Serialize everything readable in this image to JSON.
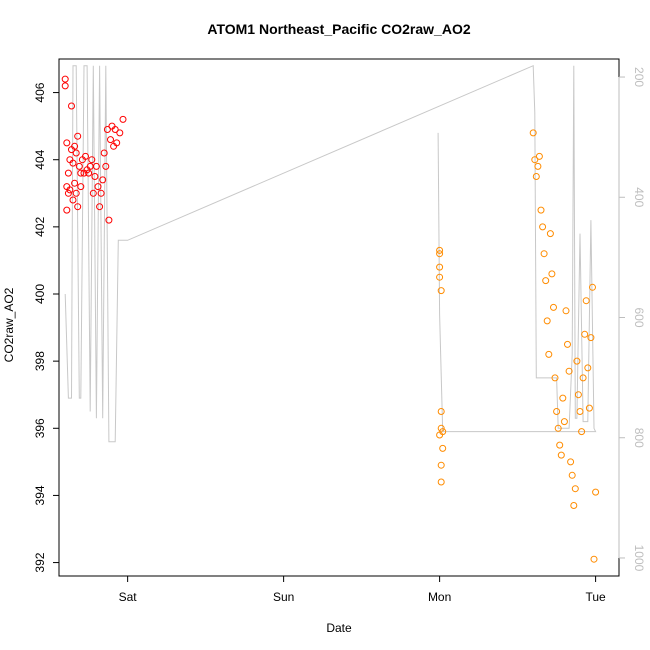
{
  "chart_data": {
    "type": "scatter",
    "title": "ATOM1 Northeast_Pacific CO2raw_AO2",
    "xlabel": "Date",
    "ylabel": "CO2raw_AO2",
    "x_ticks": [
      "Sat",
      "Sun",
      "Mon",
      "Tue"
    ],
    "x_tick_values": [
      1,
      2,
      3,
      4
    ],
    "xlim": [
      0.56,
      4.15
    ],
    "ylim": [
      391.6,
      407
    ],
    "y_ticks": [
      392,
      394,
      396,
      398,
      400,
      402,
      404,
      406
    ],
    "y2_ticks": [
      200,
      400,
      600,
      800,
      1000
    ],
    "y2lim": [
      170,
      1030
    ],
    "grid": false,
    "legend": "none",
    "colors": {
      "series1": "#ff0000",
      "series2": "#ff8c00",
      "line": "#c8c8c8",
      "right_axis": "#bebebe"
    },
    "series": [
      {
        "color": "#ff0000",
        "x": [
          0.6,
          0.6,
          0.61,
          0.61,
          0.61,
          0.62,
          0.62,
          0.63,
          0.63,
          0.64,
          0.64,
          0.65,
          0.65,
          0.66,
          0.66,
          0.67,
          0.67,
          0.68,
          0.68,
          0.69,
          0.7,
          0.7,
          0.71,
          0.72,
          0.73,
          0.74,
          0.75,
          0.76,
          0.77,
          0.78,
          0.79,
          0.8,
          0.81,
          0.82,
          0.83,
          0.84,
          0.85,
          0.86,
          0.87,
          0.88,
          0.89,
          0.9,
          0.91,
          0.92,
          0.93,
          0.95,
          0.97
        ],
        "y": [
          406.4,
          406.2,
          404.5,
          403.2,
          402.5,
          403.6,
          403,
          404,
          403.1,
          405.6,
          404.3,
          402.8,
          403.9,
          404.4,
          403.3,
          404.2,
          403,
          404.7,
          402.6,
          403.8,
          403.6,
          403.2,
          404,
          403.6,
          404.1,
          403.7,
          403.6,
          403.8,
          404,
          403,
          403.5,
          403.8,
          403.2,
          402.6,
          403,
          403.4,
          404.2,
          403.8,
          404.9,
          402.2,
          404.6,
          405,
          404.4,
          404.9,
          404.5,
          404.8,
          405.2
        ]
      },
      {
        "color": "#ff8c00",
        "x": [
          3,
          3,
          3,
          3,
          3,
          3.01,
          3.01,
          3.01,
          3.01,
          3.01,
          3.02,
          3.02,
          3.6,
          3.61,
          3.62,
          3.63,
          3.64,
          3.65,
          3.66,
          3.67,
          3.68,
          3.69,
          3.7,
          3.71,
          3.72,
          3.73,
          3.74,
          3.75,
          3.76,
          3.77,
          3.78,
          3.79,
          3.8,
          3.81,
          3.82,
          3.83,
          3.84,
          3.85,
          3.86,
          3.87,
          3.88,
          3.89,
          3.9,
          3.91,
          3.92,
          3.93,
          3.94,
          3.95,
          3.96,
          3.97,
          3.98,
          3.99,
          4
        ],
        "y": [
          401.3,
          401.2,
          400.8,
          400.5,
          395.8,
          394.9,
          394.4,
          400.1,
          396.5,
          396,
          395.9,
          395.4,
          404.8,
          404,
          403.5,
          403.8,
          404.1,
          402.5,
          402,
          401.2,
          400.4,
          399.2,
          398.2,
          401.8,
          400.6,
          399.6,
          397.5,
          396.5,
          396,
          395.5,
          395.2,
          396.9,
          396.2,
          399.5,
          398.5,
          397.7,
          395,
          394.6,
          393.7,
          394.2,
          398,
          397,
          396.5,
          395.9,
          397.5,
          398.8,
          399.8,
          397.8,
          396.6,
          398.7,
          400.2,
          392.1,
          394.1
        ]
      }
    ],
    "line_series": {
      "name": "",
      "color": "#c8c8c8",
      "x": [
        0.6,
        0.62,
        0.64,
        0.65,
        0.67,
        0.69,
        0.7,
        0.72,
        0.74,
        0.76,
        0.78,
        0.8,
        0.82,
        0.84,
        0.86,
        0.88,
        0.9,
        0.92,
        0.94,
        0.96,
        0.98,
        1.0,
        3.6,
        3.61,
        3.62,
        3.65,
        3.7,
        3.75,
        3.76,
        3.77,
        3.78,
        3.8,
        3.83,
        3.85,
        3.86,
        3.87,
        3.88,
        3.9,
        3.92,
        3.95,
        3.97,
        3.99,
        4.0,
        3.02,
        3.0,
        2.99
      ],
      "y": [
        400,
        396.9,
        396.9,
        406.8,
        406.8,
        396.9,
        396.9,
        406.8,
        406.8,
        396.5,
        406.8,
        396.3,
        406.8,
        396.3,
        406.8,
        395.6,
        395.6,
        395.6,
        401.6,
        401.6,
        401.6,
        401.6,
        406.8,
        405.4,
        397.5,
        397.5,
        397.5,
        397.5,
        396,
        396,
        396,
        396,
        396,
        398.2,
        406.8,
        396.3,
        396.3,
        401.8,
        396.2,
        396.2,
        402.2,
        396,
        395.9,
        395.9,
        399.4,
        404.8
      ]
    }
  }
}
